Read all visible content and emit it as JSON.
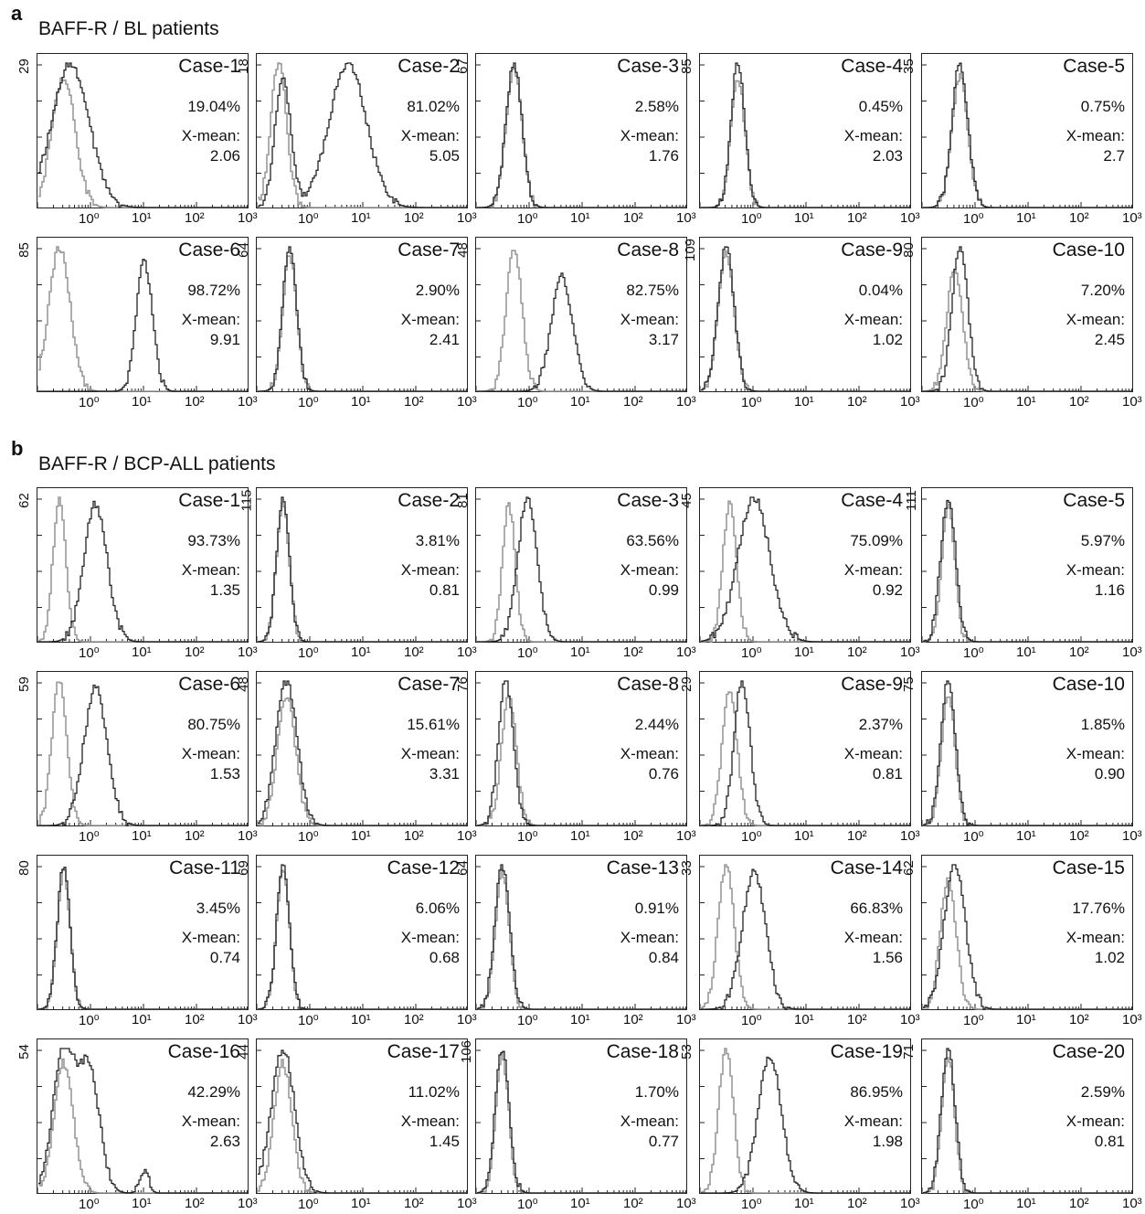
{
  "sections": [
    {
      "letter": "a",
      "title": "BAFF-R / BL patients",
      "x_tick_labels": [
        "10⁰",
        "10¹",
        "10²",
        "10³"
      ],
      "cases": [
        {
          "case": "Case-1",
          "pct": "19.04%",
          "xmean_label": "X-mean:",
          "xmean": "2.06",
          "ymax": "29"
        },
        {
          "case": "Case-2",
          "pct": "81.02%",
          "xmean_label": "X-mean:",
          "xmean": "5.05",
          "ymax": "18"
        },
        {
          "case": "Case-3",
          "pct": "2.58%",
          "xmean_label": "X-mean:",
          "xmean": "1.76",
          "ymax": "67"
        },
        {
          "case": "Case-4",
          "pct": "0.45%",
          "xmean_label": "X-mean:",
          "xmean": "2.03",
          "ymax": "85"
        },
        {
          "case": "Case-5",
          "pct": "0.75%",
          "xmean_label": "X-mean:",
          "xmean": "2.7",
          "ymax": "35"
        },
        {
          "case": "Case-6",
          "pct": "98.72%",
          "xmean_label": "X-mean:",
          "xmean": "9.91",
          "ymax": "85"
        },
        {
          "case": "Case-7",
          "pct": "2.90%",
          "xmean_label": "X-mean:",
          "xmean": "2.41",
          "ymax": "64"
        },
        {
          "case": "Case-8",
          "pct": "82.75%",
          "xmean_label": "X-mean:",
          "xmean": "3.17",
          "ymax": "48"
        },
        {
          "case": "Case-9",
          "pct": "0.04%",
          "xmean_label": "X-mean:",
          "xmean": "1.02",
          "ymax": "109"
        },
        {
          "case": "Case-10",
          "pct": "7.20%",
          "xmean_label": "X-mean:",
          "xmean": "2.45",
          "ymax": "80"
        }
      ]
    },
    {
      "letter": "b",
      "title": "BAFF-R / BCP-ALL patients",
      "x_tick_labels": [
        "10⁰",
        "10¹",
        "10²",
        "10³"
      ],
      "cases": [
        {
          "case": "Case-1",
          "pct": "93.73%",
          "xmean_label": "X-mean:",
          "xmean": "1.35",
          "ymax": "62"
        },
        {
          "case": "Case-2",
          "pct": "3.81%",
          "xmean_label": "X-mean:",
          "xmean": "0.81",
          "ymax": "115"
        },
        {
          "case": "Case-3",
          "pct": "63.56%",
          "xmean_label": "X-mean:",
          "xmean": "0.99",
          "ymax": "81"
        },
        {
          "case": "Case-4",
          "pct": "75.09%",
          "xmean_label": "X-mean:",
          "xmean": "0.92",
          "ymax": "45"
        },
        {
          "case": "Case-5",
          "pct": "5.97%",
          "xmean_label": "X-mean:",
          "xmean": "1.16",
          "ymax": "111"
        },
        {
          "case": "Case-6",
          "pct": "80.75%",
          "xmean_label": "X-mean:",
          "xmean": "1.53",
          "ymax": "59"
        },
        {
          "case": "Case-7",
          "pct": "15.61%",
          "xmean_label": "X-mean:",
          "xmean": "3.31",
          "ymax": "48"
        },
        {
          "case": "Case-8",
          "pct": "2.44%",
          "xmean_label": "X-mean:",
          "xmean": "0.76",
          "ymax": "76"
        },
        {
          "case": "Case-9",
          "pct": "2.37%",
          "xmean_label": "X-mean:",
          "xmean": "0.81",
          "ymax": "29"
        },
        {
          "case": "Case-10",
          "pct": "1.85%",
          "xmean_label": "X-mean:",
          "xmean": "0.90",
          "ymax": "75"
        },
        {
          "case": "Case-11",
          "pct": "3.45%",
          "xmean_label": "X-mean:",
          "xmean": "0.74",
          "ymax": "80"
        },
        {
          "case": "Case-12",
          "pct": "6.06%",
          "xmean_label": "X-mean:",
          "xmean": "0.68",
          "ymax": "69"
        },
        {
          "case": "Case-13",
          "pct": "0.91%",
          "xmean_label": "X-mean:",
          "xmean": "0.84",
          "ymax": "64"
        },
        {
          "case": "Case-14",
          "pct": "66.83%",
          "xmean_label": "X-mean:",
          "xmean": "1.56",
          "ymax": "33"
        },
        {
          "case": "Case-15",
          "pct": "17.76%",
          "xmean_label": "X-mean:",
          "xmean": "1.02",
          "ymax": "62"
        },
        {
          "case": "Case-16",
          "pct": "42.29%",
          "xmean_label": "X-mean:",
          "xmean": "2.63",
          "ymax": "54"
        },
        {
          "case": "Case-17",
          "pct": "11.02%",
          "xmean_label": "X-mean:",
          "xmean": "1.45",
          "ymax": "44"
        },
        {
          "case": "Case-18",
          "pct": "1.70%",
          "xmean_label": "X-mean:",
          "xmean": "0.77",
          "ymax": "106"
        },
        {
          "case": "Case-19",
          "pct": "86.95%",
          "xmean_label": "X-mean:",
          "xmean": "1.98",
          "ymax": "53"
        },
        {
          "case": "Case-20",
          "pct": "2.59%",
          "xmean_label": "X-mean:",
          "xmean": "0.81",
          "ymax": "71"
        }
      ]
    }
  ],
  "colors": {
    "control": "#9a9a9a",
    "stained": "#222222",
    "axis": "#222222"
  },
  "chart_data": [
    {
      "type": "area",
      "title": "BAFF-R / BL patients",
      "x_scale": "log",
      "xlim": [
        0.1,
        1000
      ],
      "xticks": [
        "10⁰",
        "10¹",
        "10²",
        "10³"
      ],
      "series": [
        {
          "label": "Case-1",
          "peaks": [
            {
              "x": 0.4,
              "h": 1.0,
              "w": 0.35
            }
          ],
          "control": {
            "x": 0.3,
            "h": 0.9,
            "w": 0.22
          }
        },
        {
          "label": "Case-2",
          "peaks": [
            {
              "x": 0.3,
              "h": 0.9,
              "w": 0.15
            },
            {
              "x": 5.0,
              "h": 1.0,
              "w": 0.35
            }
          ],
          "control": {
            "x": 0.25,
            "h": 1.0,
            "w": 0.15
          }
        },
        {
          "label": "Case-3",
          "peaks": [
            {
              "x": 0.5,
              "h": 1.0,
              "w": 0.15
            }
          ],
          "control": {
            "x": 0.5,
            "h": 0.95,
            "w": 0.15
          }
        },
        {
          "label": "Case-4",
          "peaks": [
            {
              "x": 0.5,
              "h": 1.0,
              "w": 0.13
            }
          ],
          "control": {
            "x": 0.5,
            "h": 0.9,
            "w": 0.13
          }
        },
        {
          "label": "Case-5",
          "peaks": [
            {
              "x": 0.5,
              "h": 1.0,
              "w": 0.15
            }
          ],
          "control": {
            "x": 0.5,
            "h": 0.9,
            "w": 0.15
          }
        },
        {
          "label": "Case-6",
          "peaks": [
            {
              "x": 10.0,
              "h": 0.9,
              "w": 0.15
            }
          ],
          "control": {
            "x": 0.25,
            "h": 1.0,
            "w": 0.2
          }
        },
        {
          "label": "Case-7",
          "peaks": [
            {
              "x": 0.4,
              "h": 1.0,
              "w": 0.13
            }
          ],
          "control": {
            "x": 0.4,
            "h": 0.95,
            "w": 0.13
          }
        },
        {
          "label": "Case-8",
          "peaks": [
            {
              "x": 4.0,
              "h": 0.8,
              "w": 0.2
            }
          ],
          "control": {
            "x": 0.5,
            "h": 1.0,
            "w": 0.15
          }
        },
        {
          "label": "Case-9",
          "peaks": [
            {
              "x": 0.3,
              "h": 1.0,
              "w": 0.15
            }
          ],
          "control": {
            "x": 0.3,
            "h": 0.95,
            "w": 0.15
          }
        },
        {
          "label": "Case-10",
          "peaks": [
            {
              "x": 0.5,
              "h": 1.0,
              "w": 0.15
            }
          ],
          "control": {
            "x": 0.4,
            "h": 0.85,
            "w": 0.15
          }
        }
      ]
    },
    {
      "type": "area",
      "title": "BAFF-R / BCP-ALL patients",
      "x_scale": "log",
      "xlim": [
        0.1,
        1000
      ],
      "xticks": [
        "10⁰",
        "10¹",
        "10²",
        "10³"
      ],
      "series": [
        {
          "label": "Case-1",
          "peaks": [
            {
              "x": 1.2,
              "h": 0.95,
              "w": 0.22
            }
          ],
          "control": {
            "x": 0.25,
            "h": 1.0,
            "w": 0.12
          }
        },
        {
          "label": "Case-2",
          "peaks": [
            {
              "x": 0.3,
              "h": 1.0,
              "w": 0.12
            }
          ],
          "control": {
            "x": 0.3,
            "h": 0.95,
            "w": 0.12
          }
        },
        {
          "label": "Case-3",
          "peaks": [
            {
              "x": 0.9,
              "h": 1.0,
              "w": 0.18
            }
          ],
          "control": {
            "x": 0.4,
            "h": 0.95,
            "w": 0.12
          }
        },
        {
          "label": "Case-4",
          "peaks": [
            {
              "x": 1.0,
              "h": 1.0,
              "w": 0.3
            }
          ],
          "control": {
            "x": 0.35,
            "h": 0.95,
            "w": 0.13
          }
        },
        {
          "label": "Case-5",
          "peaks": [
            {
              "x": 0.3,
              "h": 1.0,
              "w": 0.14
            }
          ],
          "control": {
            "x": 0.3,
            "h": 0.95,
            "w": 0.12
          }
        },
        {
          "label": "Case-6",
          "peaks": [
            {
              "x": 1.2,
              "h": 0.95,
              "w": 0.22
            }
          ],
          "control": {
            "x": 0.25,
            "h": 1.0,
            "w": 0.14
          }
        },
        {
          "label": "Case-7",
          "peaks": [
            {
              "x": 0.35,
              "h": 1.0,
              "w": 0.2
            }
          ],
          "control": {
            "x": 0.35,
            "h": 0.9,
            "w": 0.17
          }
        },
        {
          "label": "Case-8",
          "peaks": [
            {
              "x": 0.35,
              "h": 1.0,
              "w": 0.14
            }
          ],
          "control": {
            "x": 0.4,
            "h": 0.9,
            "w": 0.14
          }
        },
        {
          "label": "Case-9",
          "peaks": [
            {
              "x": 0.6,
              "h": 1.0,
              "w": 0.15
            }
          ],
          "control": {
            "x": 0.35,
            "h": 0.95,
            "w": 0.14
          }
        },
        {
          "label": "Case-10",
          "peaks": [
            {
              "x": 0.3,
              "h": 1.0,
              "w": 0.14
            }
          ],
          "control": {
            "x": 0.3,
            "h": 0.9,
            "w": 0.13
          }
        },
        {
          "label": "Case-11",
          "peaks": [
            {
              "x": 0.3,
              "h": 1.0,
              "w": 0.12
            }
          ],
          "control": {
            "x": 0.3,
            "h": 0.95,
            "w": 0.12
          }
        },
        {
          "label": "Case-12",
          "peaks": [
            {
              "x": 0.3,
              "h": 1.0,
              "w": 0.12
            }
          ],
          "control": {
            "x": 0.3,
            "h": 0.95,
            "w": 0.12
          }
        },
        {
          "label": "Case-13",
          "peaks": [
            {
              "x": 0.3,
              "h": 1.0,
              "w": 0.14
            }
          ],
          "control": {
            "x": 0.3,
            "h": 0.95,
            "w": 0.13
          }
        },
        {
          "label": "Case-14",
          "peaks": [
            {
              "x": 1.0,
              "h": 0.95,
              "w": 0.22
            }
          ],
          "control": {
            "x": 0.3,
            "h": 1.0,
            "w": 0.15
          }
        },
        {
          "label": "Case-15",
          "peaks": [
            {
              "x": 0.4,
              "h": 1.0,
              "w": 0.2
            }
          ],
          "control": {
            "x": 0.3,
            "h": 0.9,
            "w": 0.15
          }
        },
        {
          "label": "Case-16",
          "peaks": [
            {
              "x": 0.3,
              "h": 1.0,
              "w": 0.2
            },
            {
              "x": 0.9,
              "h": 0.85,
              "w": 0.2
            },
            {
              "x": 10.0,
              "h": 0.15,
              "w": 0.08
            }
          ],
          "control": {
            "x": 0.3,
            "h": 0.9,
            "w": 0.18
          }
        },
        {
          "label": "Case-17",
          "peaks": [
            {
              "x": 0.3,
              "h": 1.0,
              "w": 0.22
            }
          ],
          "control": {
            "x": 0.3,
            "h": 0.9,
            "w": 0.17
          }
        },
        {
          "label": "Case-18",
          "peaks": [
            {
              "x": 0.3,
              "h": 1.0,
              "w": 0.13
            }
          ],
          "control": {
            "x": 0.3,
            "h": 0.95,
            "w": 0.12
          }
        },
        {
          "label": "Case-19",
          "peaks": [
            {
              "x": 2.0,
              "h": 0.95,
              "w": 0.22
            }
          ],
          "control": {
            "x": 0.3,
            "h": 1.0,
            "w": 0.14
          }
        },
        {
          "label": "Case-20",
          "peaks": [
            {
              "x": 0.3,
              "h": 1.0,
              "w": 0.13
            }
          ],
          "control": {
            "x": 0.3,
            "h": 0.95,
            "w": 0.12
          }
        }
      ]
    }
  ]
}
